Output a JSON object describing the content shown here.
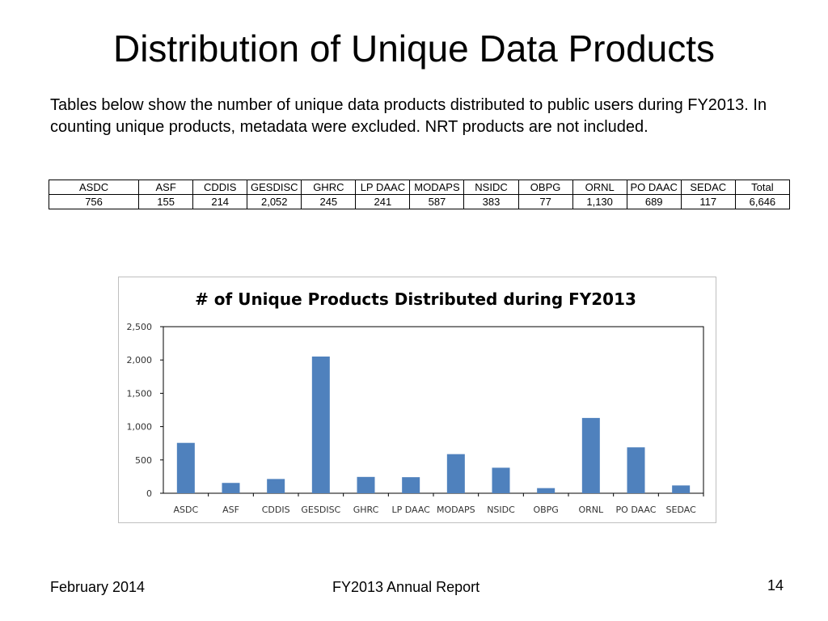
{
  "slide": {
    "title": "Distribution of Unique Data Products",
    "intro": "Tables below show the number of unique data products distributed to public users during FY2013. In counting unique products, metadata were excluded. NRT products are not included."
  },
  "table": {
    "headers": [
      "ASDC",
      "ASF",
      "CDDIS",
      "GESDISC",
      "GHRC",
      "LP DAAC",
      "MODAPS",
      "NSIDC",
      "OBPG",
      "ORNL",
      "PO DAAC",
      "SEDAC",
      "Total"
    ],
    "values": [
      "756",
      "155",
      "214",
      "2,052",
      "245",
      "241",
      "587",
      "383",
      "77",
      "1,130",
      "689",
      "117",
      "6,646"
    ]
  },
  "chart_data": {
    "type": "bar",
    "title": "# of Unique Products Distributed during FY2013",
    "categories": [
      "ASDC",
      "ASF",
      "CDDIS",
      "GESDISC",
      "GHRC",
      "LP DAAC",
      "MODAPS",
      "NSIDC",
      "OBPG",
      "ORNL",
      "PO DAAC",
      "SEDAC"
    ],
    "values": [
      756,
      155,
      214,
      2052,
      245,
      241,
      587,
      383,
      77,
      1130,
      689,
      117
    ],
    "yticks": [
      "0",
      "500",
      "1,000",
      "1,500",
      "2,000",
      "2,500"
    ],
    "ylim": [
      0,
      2500
    ],
    "xlabel": "",
    "ylabel": "",
    "grid": false,
    "legend": "none",
    "bar_color": "#4f81bd"
  },
  "footer": {
    "date": "February 2014",
    "report": "FY2013 Annual Report",
    "page_number": "14"
  }
}
